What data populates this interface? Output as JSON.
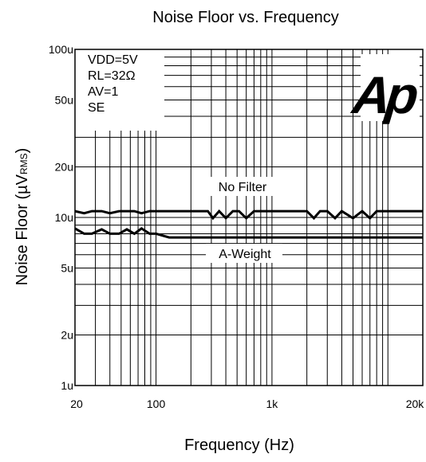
{
  "chart_data": {
    "type": "line",
    "title": "Noise Floor vs. Frequency",
    "xlabel": "Frequency (Hz)",
    "ylabel": "Noise Floor (µV",
    "ylabel_sub": "RMS",
    "ylabel_close": ")",
    "x_scale": "log",
    "y_scale": "log",
    "xlim": [
      20,
      20000
    ],
    "ylim": [
      1,
      100
    ],
    "grid": true,
    "x_ticks": [
      {
        "value": 20,
        "label": "20"
      },
      {
        "value": 100,
        "label": "100"
      },
      {
        "value": 1000,
        "label": "1k"
      },
      {
        "value": 20000,
        "label": "20k"
      }
    ],
    "y_ticks": [
      {
        "value": 1,
        "label": "1u"
      },
      {
        "value": 2,
        "label": "2u"
      },
      {
        "value": 5,
        "label": "5u"
      },
      {
        "value": 10,
        "label": "10u"
      },
      {
        "value": 20,
        "label": "20u"
      },
      {
        "value": 50,
        "label": "50u"
      },
      {
        "value": 100,
        "label": "100u"
      }
    ],
    "conditions": [
      "VDD=5V",
      "RL=32Ω",
      "AV=1",
      "SE"
    ],
    "logo": "Ap",
    "series": [
      {
        "name": "No Filter",
        "x": [
          20,
          24,
          28,
          34,
          40,
          48,
          56,
          65,
          75,
          88,
          100,
          130,
          200,
          280,
          310,
          350,
          400,
          460,
          520,
          600,
          700,
          1000,
          1500,
          2000,
          2300,
          2600,
          3000,
          3500,
          4000,
          5000,
          6000,
          7000,
          8000,
          10000,
          15000,
          20000
        ],
        "y": [
          10.9,
          10.6,
          10.9,
          10.9,
          10.6,
          10.9,
          10.9,
          10.9,
          10.6,
          10.9,
          10.9,
          10.9,
          10.9,
          10.9,
          9.9,
          10.9,
          9.9,
          10.9,
          10.9,
          9.9,
          10.9,
          10.9,
          10.9,
          10.9,
          9.9,
          10.9,
          10.9,
          9.9,
          10.9,
          9.9,
          10.9,
          9.9,
          10.9,
          10.9,
          10.9,
          10.9
        ]
      },
      {
        "name": "A-Weight",
        "x": [
          20,
          24,
          28,
          34,
          40,
          48,
          56,
          65,
          75,
          88,
          100,
          130,
          200,
          500,
          1000,
          5000,
          20000
        ],
        "y": [
          8.6,
          8.0,
          8.0,
          8.5,
          8.0,
          8.0,
          8.5,
          8.0,
          8.6,
          8.0,
          8.0,
          7.6,
          7.6,
          7.6,
          7.6,
          7.6,
          7.6
        ]
      }
    ]
  }
}
